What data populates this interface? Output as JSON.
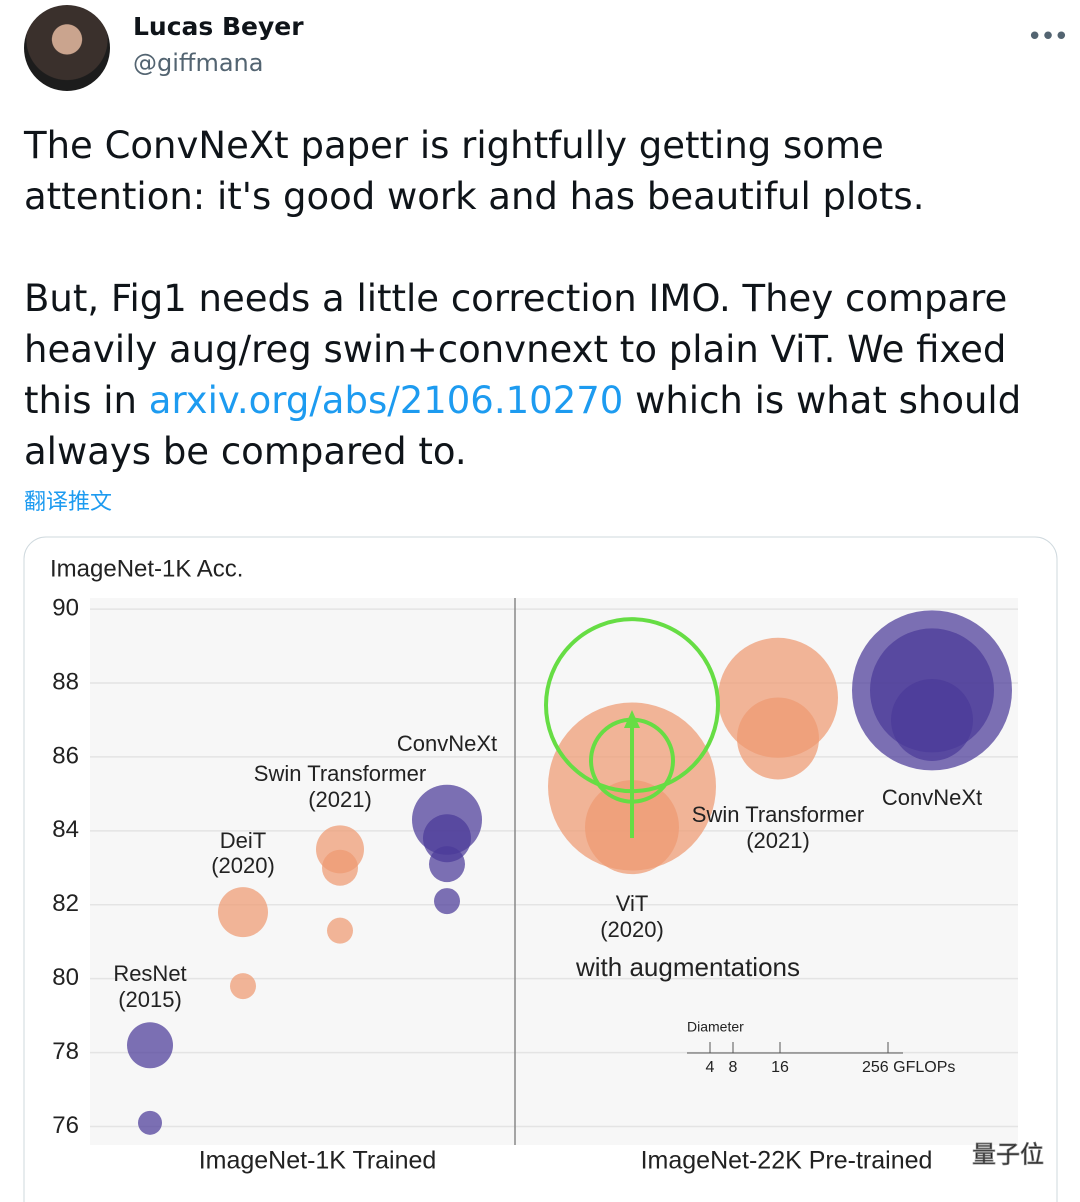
{
  "tweet": {
    "name": "Lucas Beyer",
    "handle": "@giffmana",
    "paragraph_1": "The ConvNeXt paper is rightfully getting some attention: it's good work and has beautiful plots.",
    "paragraph_2_start": "But, Fig1 needs a little correction IMO. They compare heavily aug/reg swin+convnext to plain ViT. We fixed this in ",
    "link": "arxiv.org/abs/2106.10270",
    "paragraph_2_end": " which is what should always be compared to.",
    "translate": "翻译推文"
  },
  "chart_data": {
    "type": "bubble",
    "y_label": "ImageNet-1K Acc.",
    "ylim": [
      75.5,
      90.3
    ],
    "yticks": [
      76,
      78,
      80,
      82,
      84,
      86,
      88,
      90
    ],
    "grid": true,
    "panels": [
      "ImageNet-1K Trained",
      "ImageNet-22K Pre-trained"
    ],
    "series": [
      {
        "name": "ResNet",
        "year": "(2015)",
        "panel": 0,
        "color": "#4b3a98",
        "values": [
          78.2,
          76.1
        ],
        "sizes": [
          23,
          12
        ]
      },
      {
        "name": "DeiT",
        "year": "(2020)",
        "panel": 0,
        "color": "#ef9a72",
        "values": [
          81.8,
          79.8
        ],
        "sizes": [
          25,
          13
        ]
      },
      {
        "name": "Swin Transformer",
        "year": "(2021)",
        "panel": 0,
        "color": "#ef9a72",
        "values": [
          83.5,
          83.0,
          81.3
        ],
        "sizes": [
          24,
          18,
          13
        ]
      },
      {
        "name": "ConvNeXt",
        "panel": 0,
        "color": "#4b3a98",
        "values": [
          84.3,
          83.8,
          83.1,
          82.1
        ],
        "sizes": [
          35,
          24,
          18,
          13
        ]
      },
      {
        "name": "ViT",
        "year": "(2020)",
        "panel": 1,
        "color": "#ef9a72",
        "values": [
          85.2,
          84.1
        ],
        "sizes": [
          84,
          47
        ]
      },
      {
        "name": "Swin Transformer",
        "year": "(2021)",
        "panel": 1,
        "color": "#ef9a72",
        "values": [
          87.6,
          86.5
        ],
        "sizes": [
          60,
          41
        ]
      },
      {
        "name": "ConvNeXt",
        "panel": 1,
        "color": "#4b3a98",
        "values": [
          87.8,
          87.8,
          87.0
        ],
        "sizes": [
          80,
          62,
          41
        ]
      }
    ],
    "annotation": {
      "text": "with augmentations",
      "color": "#66dd44",
      "values": [
        87.4,
        85.9
      ],
      "sizes": [
        86,
        41
      ]
    },
    "size_legend": {
      "title": "Diameter",
      "ticks": [
        4,
        8,
        16,
        {
          "value": 256,
          "label": "256 GFLOPs"
        }
      ]
    }
  },
  "watermark": "量子位"
}
